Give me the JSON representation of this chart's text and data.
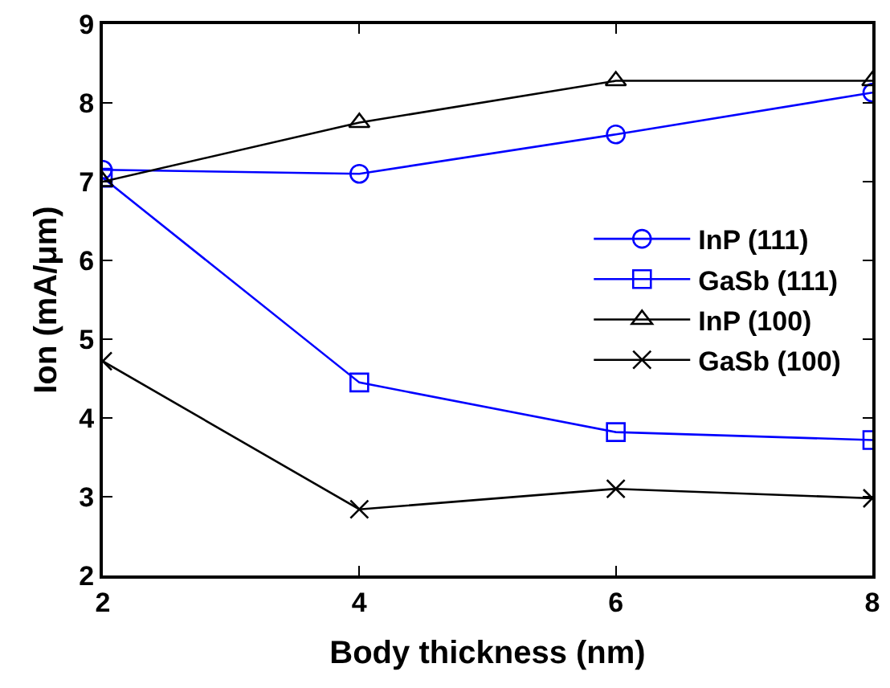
{
  "chart_data": {
    "type": "line",
    "xlabel": "Body thickness (nm)",
    "ylabel": "Ion (mA/μm)",
    "x": [
      2,
      4,
      6,
      8
    ],
    "series": [
      {
        "name": "InP (111)",
        "color": "#0000ff",
        "marker": "circle",
        "values": [
          7.15,
          7.1,
          7.6,
          8.13
        ]
      },
      {
        "name": "GaSb (111)",
        "color": "#0000ff",
        "marker": "square",
        "values": [
          7.05,
          4.45,
          3.82,
          3.72
        ]
      },
      {
        "name": "InP (100)",
        "color": "#000000",
        "marker": "triangle",
        "values": [
          7.0,
          7.75,
          8.28,
          8.28
        ]
      },
      {
        "name": "GaSb (100)",
        "color": "#000000",
        "marker": "cross",
        "values": [
          4.72,
          2.84,
          3.1,
          2.98
        ]
      }
    ],
    "xlim": [
      2,
      8
    ],
    "xticks": [
      2,
      4,
      6,
      8
    ],
    "ylim": [
      2,
      9
    ],
    "yticks": [
      2,
      3,
      4,
      5,
      6,
      7,
      8,
      9
    ],
    "legend": "right",
    "line_style": "solid"
  }
}
